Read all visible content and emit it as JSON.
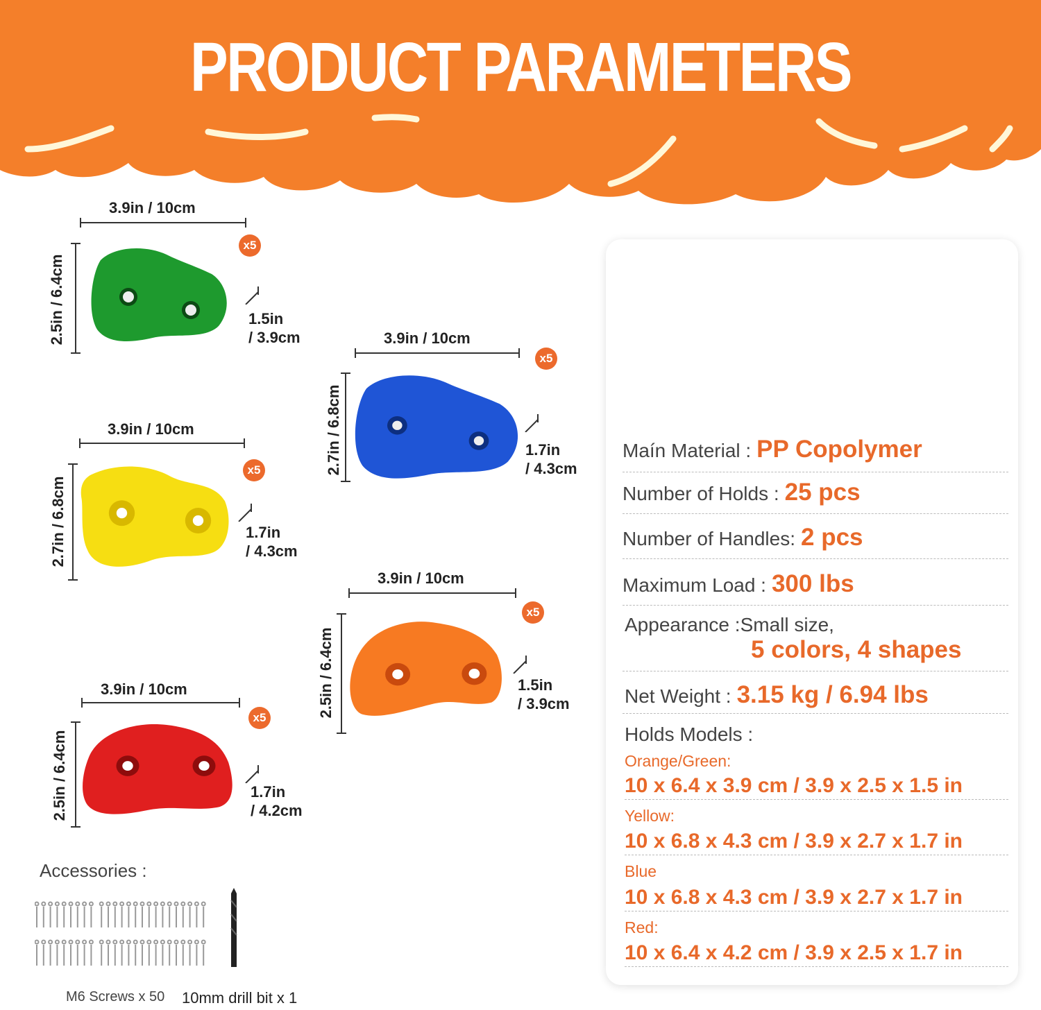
{
  "header": {
    "title": "PRODUCT PARAMETERS",
    "color": "#f47f2a"
  },
  "holds": [
    {
      "color": "green",
      "hex": "#1e9a2e",
      "width_label": "3.9in / 10cm",
      "height_label": "2.5in / 6.4cm",
      "depth_in": "1.5in",
      "depth_cm": "/ 3.9cm",
      "count": "x5"
    },
    {
      "color": "blue",
      "hex": "#1f55d6",
      "width_label": "3.9in / 10cm",
      "height_label": "2.7in / 6.8cm",
      "depth_in": "1.7in",
      "depth_cm": "/ 4.3cm",
      "count": "x5"
    },
    {
      "color": "yellow",
      "hex": "#f6de12",
      "width_label": "3.9in / 10cm",
      "height_label": "2.7in / 6.8cm",
      "depth_in": "1.7in",
      "depth_cm": "/ 4.3cm",
      "count": "x5"
    },
    {
      "color": "orange",
      "hex": "#f77a22",
      "width_label": "3.9in / 10cm",
      "height_label": "2.5in / 6.4cm",
      "depth_in": "1.5in",
      "depth_cm": "/ 3.9cm",
      "count": "x5"
    },
    {
      "color": "red",
      "hex": "#e01f1f",
      "width_label": "3.9in / 10cm",
      "height_label": "2.5in / 6.4cm",
      "depth_in": "1.7in",
      "depth_cm": "/ 4.2cm",
      "count": "x5"
    }
  ],
  "specs": [
    {
      "label": "Maín Material :",
      "value": "PP Copolymer"
    },
    {
      "label": "Number of Holds :",
      "value": "25 pcs"
    },
    {
      "label": "Number of Handles:",
      "value": "2 pcs"
    },
    {
      "label": "Maximum Load :",
      "value": "300 lbs"
    },
    {
      "label": "Appearance :",
      "label_extra": "Small size,",
      "value": "5 colors, 4 shapes"
    },
    {
      "label": "Net Weight :",
      "value": "3.15 kg / 6.94 lbs"
    }
  ],
  "models": {
    "title": "Holds Models :",
    "items": [
      {
        "name": "Orange/Green:",
        "size": "10 x 6.4 x 3.9 cm / 3.9 x 2.5 x 1.5 in"
      },
      {
        "name": "Yellow:",
        "size": "10 x 6.8 x 4.3 cm / 3.9 x 2.7 x 1.7 in"
      },
      {
        "name": "Blue",
        "size": "10 x 6.8 x 4.3 cm / 3.9 x 2.7 x 1.7 in"
      },
      {
        "name": "Red:",
        "size": "10 x 6.4 x 4.2 cm / 3.9 x 2.5 x 1.7 in"
      }
    ]
  },
  "accessories": {
    "title": "Accessories :",
    "screws": "M6 Screws x 50",
    "drill": "10mm drill bit x 1"
  },
  "accent_color": "#e8692a"
}
